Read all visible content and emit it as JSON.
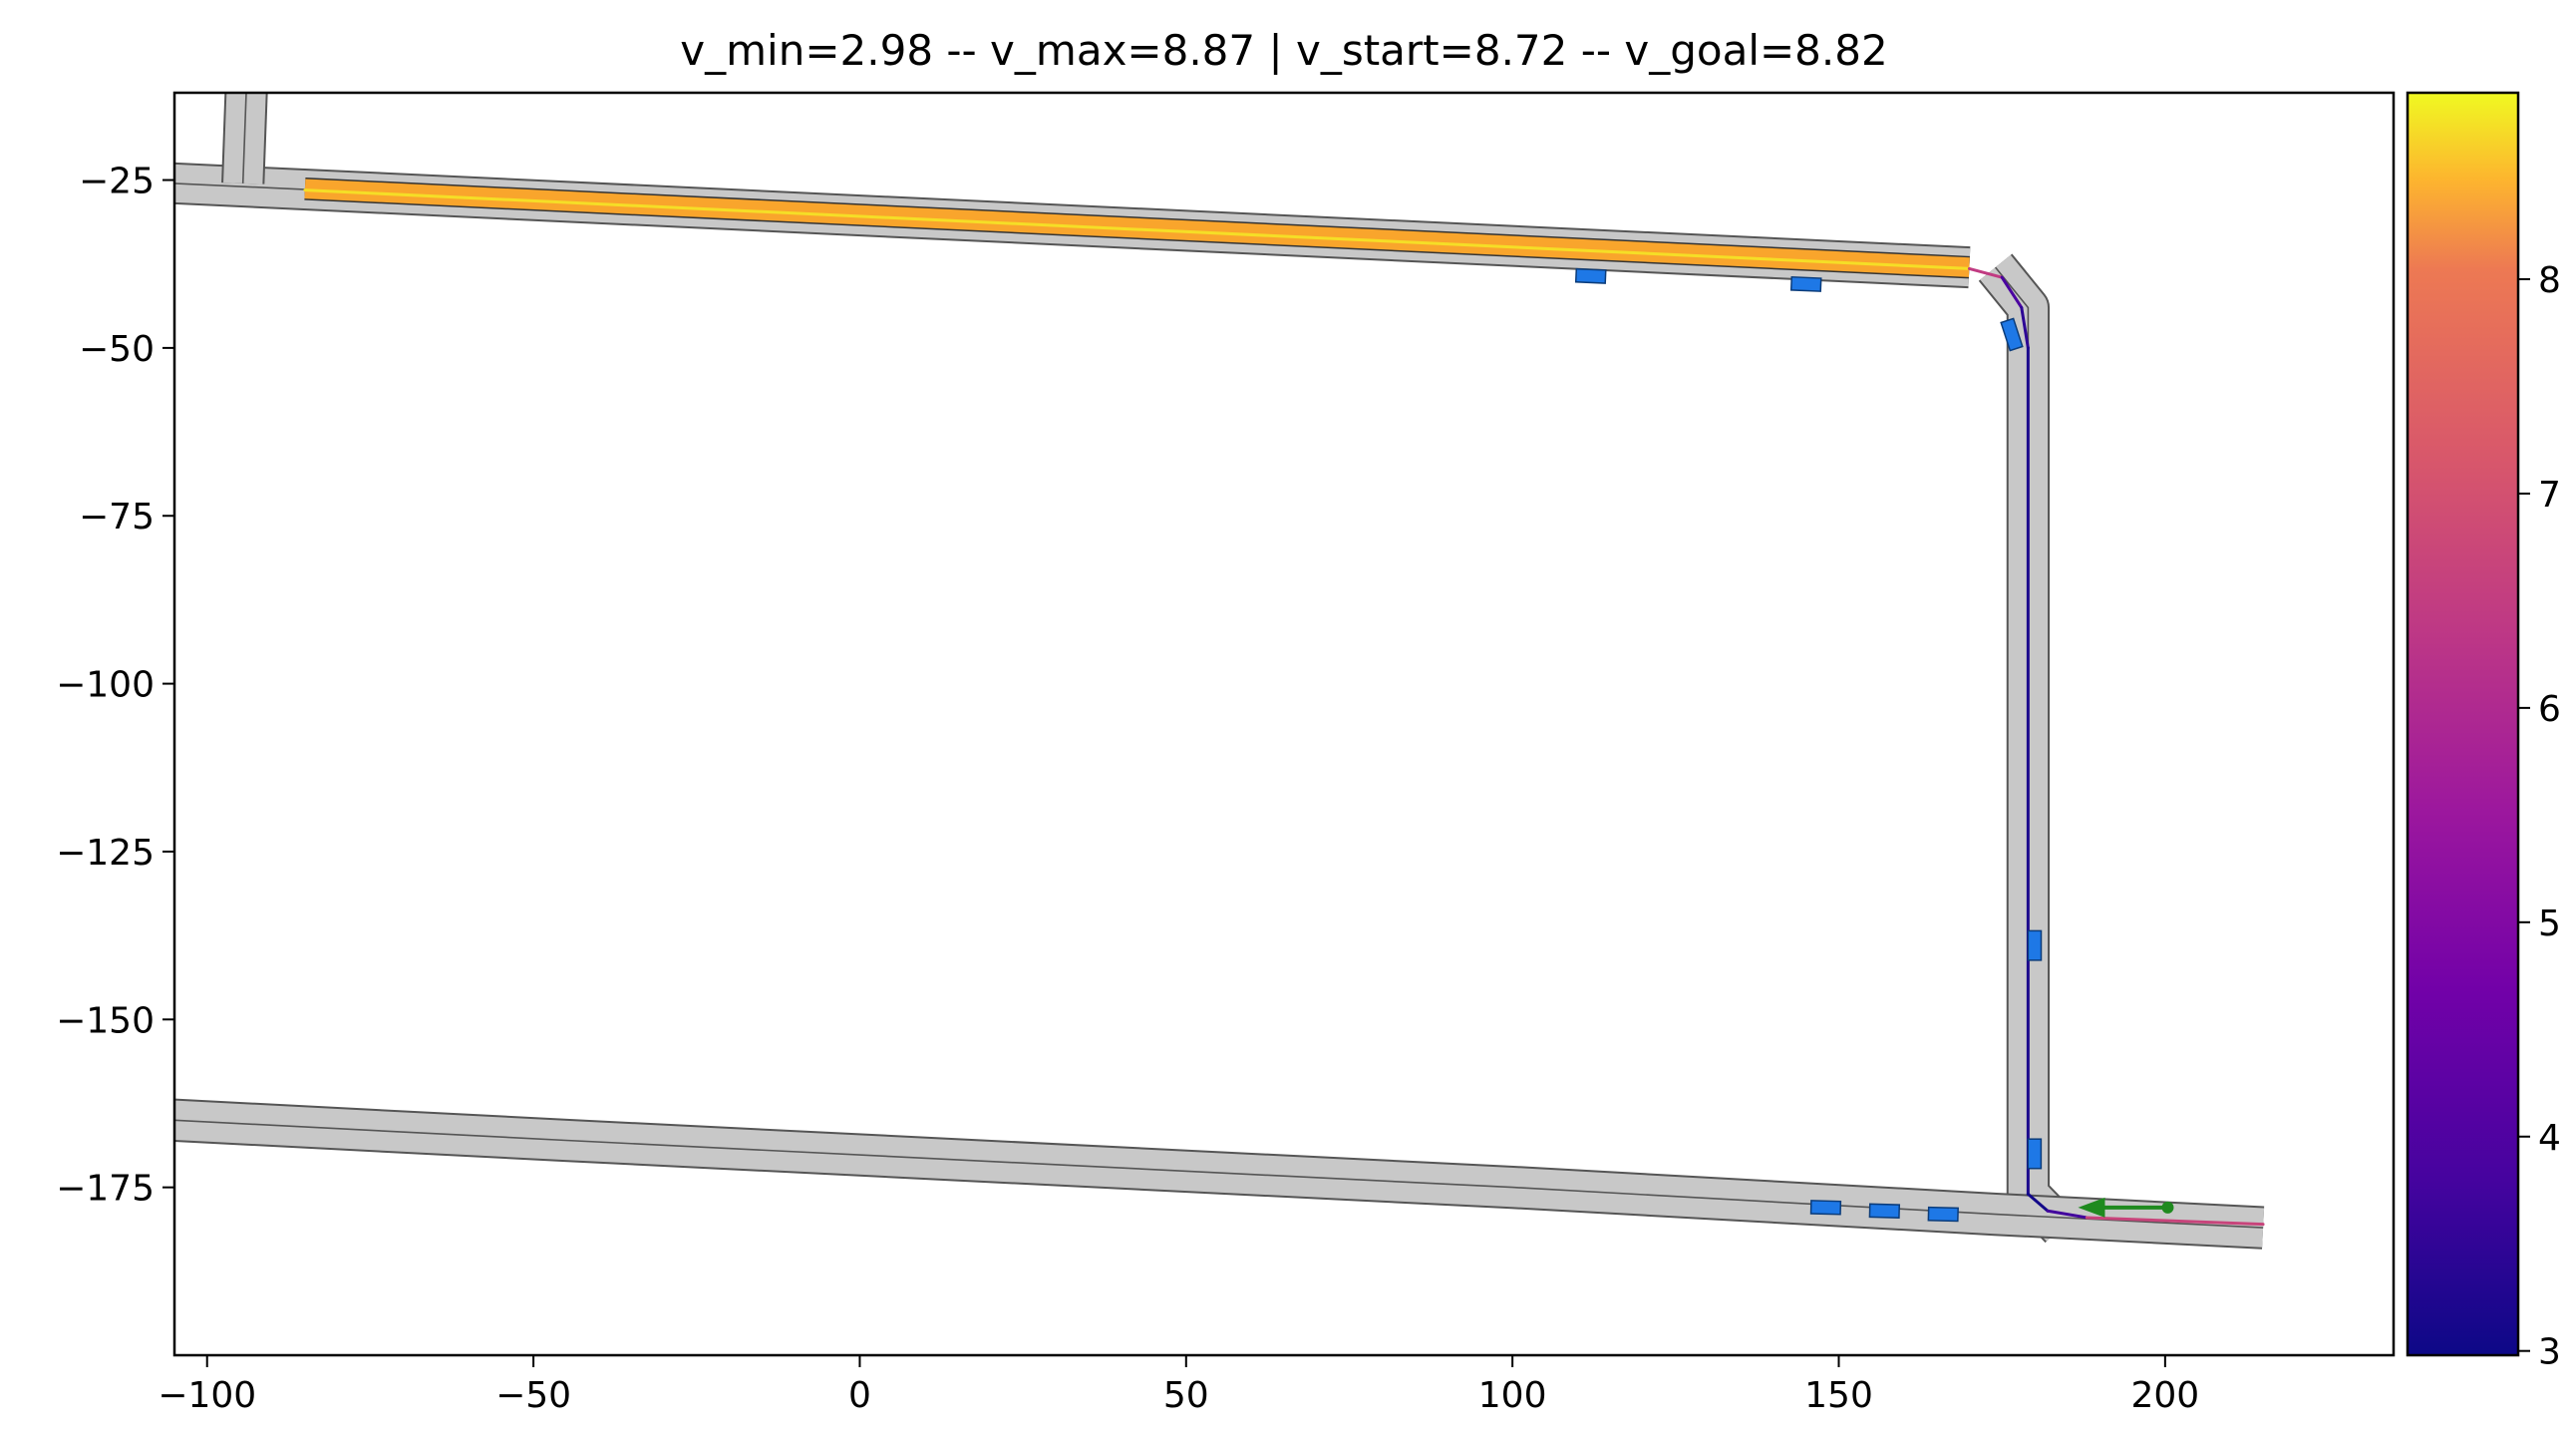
{
  "chart_data": {
    "type": "line",
    "title": "v_min=2.98  --  v_max=8.87 | v_start=8.72  --  v_goal=8.82",
    "xlabel": "",
    "ylabel": "",
    "xlim": [
      -105,
      235
    ],
    "ylim": [
      -200,
      -12
    ],
    "grid": false,
    "x_ticks": [
      -100,
      -50,
      0,
      50,
      100,
      150,
      200
    ],
    "y_ticks": [
      -25,
      -50,
      -75,
      -100,
      -125,
      -150,
      -175
    ],
    "x_tick_labels": [
      "−100",
      "−50",
      "0",
      "50",
      "100",
      "150",
      "200"
    ],
    "y_tick_labels": [
      "−25",
      "−50",
      "−75",
      "−100",
      "−125",
      "−150",
      "−175"
    ],
    "colorbar": {
      "colormap": "plasma",
      "range": [
        2.98,
        8.87
      ],
      "ticks": [
        3,
        4,
        5,
        6,
        7,
        8
      ],
      "tick_labels": [
        "3",
        "4",
        "5",
        "6",
        "7",
        "8"
      ]
    },
    "roads": [
      {
        "name": "top-road",
        "points": [
          [
            -105,
            -25.5
          ],
          [
            170,
            -38
          ]
        ],
        "half_width": 2.9
      },
      {
        "name": "top-left-vertical",
        "points": [
          [
            -94,
            -12
          ],
          [
            -94.5,
            -25.5
          ]
        ],
        "half_width": 3.0
      },
      {
        "name": "right-vertical",
        "points": [
          [
            174,
            -38
          ],
          [
            179,
            -44
          ],
          [
            179,
            -176
          ],
          [
            184,
            -181
          ]
        ],
        "half_width": 3.0
      },
      {
        "name": "bottom-road",
        "points": [
          [
            -105,
            -165
          ],
          [
            -45,
            -168
          ],
          [
            100,
            -175
          ],
          [
            174,
            -179
          ],
          [
            215,
            -181
          ]
        ],
        "half_width": 3.0
      }
    ],
    "highlighted_segment": {
      "color": "#f9a52c",
      "points": [
        [
          -85,
          -26.3
        ],
        [
          170,
          -38
        ]
      ]
    },
    "planned_path": {
      "points": [
        [
          -85,
          -26.5
        ],
        [
          170,
          -38.2
        ],
        [
          175,
          -39.5
        ],
        [
          178,
          -44
        ],
        [
          179,
          -50
        ],
        [
          179,
          -176
        ],
        [
          182,
          -178.5
        ],
        [
          188,
          -179.5
        ],
        [
          215,
          -180.5
        ]
      ],
      "speed": [
        8.72,
        8.7,
        4.2,
        3.6,
        3.3,
        3.1,
        3.0,
        4.5,
        8.82
      ]
    },
    "vehicles": [
      {
        "x": 112,
        "y": -39.3,
        "angle": -2.5
      },
      {
        "x": 145,
        "y": -40.5,
        "angle": -2.5
      },
      {
        "x": 176.5,
        "y": -48,
        "angle": -72
      },
      {
        "x": 180,
        "y": -139,
        "angle": 90
      },
      {
        "x": 180,
        "y": -170,
        "angle": 90
      },
      {
        "x": 148,
        "y": -178,
        "angle": -1.5
      },
      {
        "x": 157,
        "y": -178.5,
        "angle": -1.5
      },
      {
        "x": 166,
        "y": -179,
        "angle": -1.5
      }
    ],
    "goal_marker": {
      "x": 192,
      "y": -178,
      "color": "#1f8a1f"
    }
  }
}
